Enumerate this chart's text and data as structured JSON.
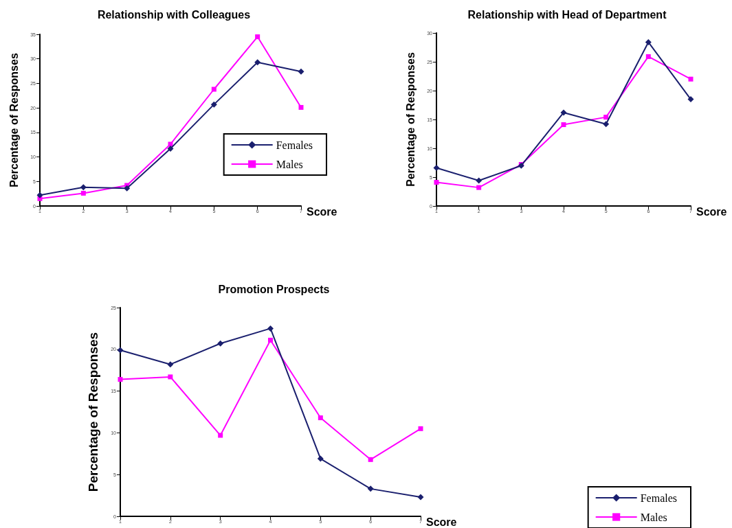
{
  "chart_data": [
    {
      "type": "line",
      "title": "Relationship with Colleagues",
      "xlabel": "Score",
      "ylabel": "Percentage of Responses",
      "categories": [
        "1",
        "2",
        "3",
        "4",
        "5",
        "6",
        "7"
      ],
      "ylim": [
        0,
        35
      ],
      "yticks": [
        0,
        5,
        10,
        15,
        20,
        25,
        30,
        35
      ],
      "grid": false,
      "legend": "right",
      "series": [
        {
          "name": "Females",
          "color": "#1a1f6e",
          "marker": "diamond",
          "values": [
            2.2,
            3.8,
            3.6,
            11.7,
            20.7,
            29.3,
            27.4
          ]
        },
        {
          "name": "Males",
          "color": "#ff00ff",
          "marker": "square",
          "values": [
            1.5,
            2.6,
            4.2,
            12.6,
            23.8,
            34.5,
            20.1
          ]
        }
      ]
    },
    {
      "type": "line",
      "title": "Relationship with Head of Department",
      "xlabel": "Score",
      "ylabel": "Percentage of Responses",
      "categories": [
        "1",
        "2",
        "3",
        "4",
        "5",
        "6",
        "7"
      ],
      "ylim": [
        0,
        30
      ],
      "yticks": [
        0,
        5,
        10,
        15,
        20,
        25,
        30
      ],
      "grid": false,
      "legend": false,
      "series": [
        {
          "color": "#1a1f6e",
          "marker": "diamond",
          "values": [
            6.6,
            4.4,
            7.0,
            16.2,
            14.2,
            28.4,
            18.5
          ]
        },
        {
          "color": "#ff00ff",
          "marker": "square",
          "values": [
            4.1,
            3.2,
            7.2,
            14.1,
            15.4,
            25.9,
            22.0
          ]
        }
      ]
    },
    {
      "type": "line",
      "title": "Promotion Prospects",
      "xlabel": "Score",
      "ylabel": "Percentage of Responses",
      "categories": [
        "1",
        "2",
        "3",
        "4",
        "5",
        "6",
        "7"
      ],
      "ylim": [
        0,
        25
      ],
      "yticks": [
        0,
        5,
        10,
        15,
        20,
        25
      ],
      "grid": false,
      "legend": "bottom right",
      "series": [
        {
          "name": "Females",
          "color": "#1a1f6e",
          "marker": "diamond",
          "values": [
            19.9,
            18.2,
            20.7,
            22.5,
            6.9,
            3.3,
            2.3
          ]
        },
        {
          "name": "Males",
          "color": "#ff00ff",
          "marker": "square",
          "values": [
            16.4,
            16.7,
            9.7,
            21.1,
            11.8,
            6.8,
            10.5
          ]
        }
      ]
    }
  ]
}
